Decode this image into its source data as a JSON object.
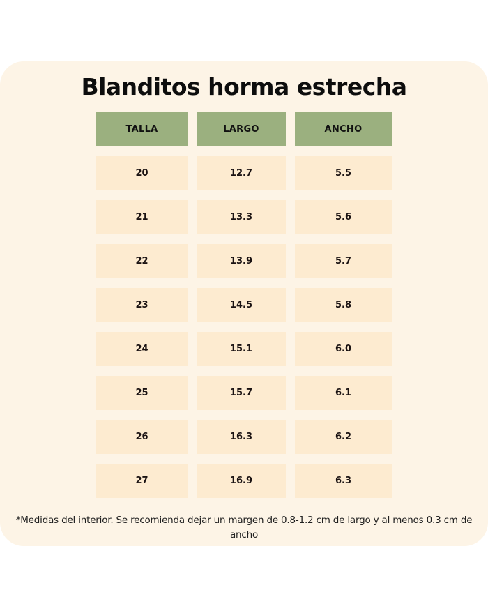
{
  "title": "Blanditos horma estrecha",
  "colors": {
    "card_background": "#fdf4e6",
    "header_cell": "#9bb07f",
    "data_cell": "#fdebd0",
    "text": "#1a1212"
  },
  "table": {
    "headers": [
      "TALLA",
      "LARGO",
      "ANCHO"
    ],
    "rows": [
      [
        "20",
        "12.7",
        "5.5"
      ],
      [
        "21",
        "13.3",
        "5.6"
      ],
      [
        "22",
        "13.9",
        "5.7"
      ],
      [
        "23",
        "14.5",
        "5.8"
      ],
      [
        "24",
        "15.1",
        "6.0"
      ],
      [
        "25",
        "15.7",
        "6.1"
      ],
      [
        "26",
        "16.3",
        "6.2"
      ],
      [
        "27",
        "16.9",
        "6.3"
      ]
    ]
  },
  "footnote": "*Medidas del interior. Se recomienda dejar un margen de 0.8-1.2 cm de largo y al menos 0.3 cm de ancho"
}
